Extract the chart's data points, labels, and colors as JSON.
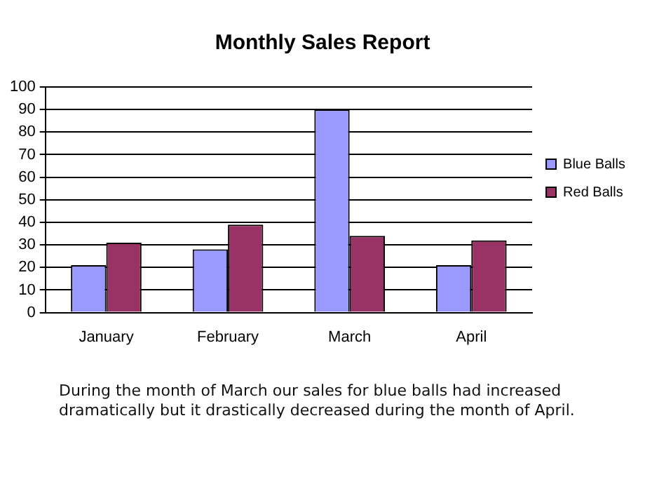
{
  "chart_data": {
    "type": "bar",
    "title": "Monthly Sales Report",
    "categories": [
      "January",
      "February",
      "March",
      "April"
    ],
    "series": [
      {
        "name": "Blue Balls",
        "color": "#9999ff",
        "values": [
          21,
          28,
          90,
          21
        ]
      },
      {
        "name": "Red Balls",
        "color": "#993366",
        "values": [
          31,
          39,
          34,
          32
        ]
      }
    ],
    "ylim": [
      0,
      100
    ],
    "yticks": [
      0,
      10,
      20,
      30,
      40,
      50,
      60,
      70,
      80,
      90,
      100
    ],
    "grid": "y",
    "legend": "right",
    "annotations": [
      "During the month of March our sales for blue balls had increased dramatically but it drastically decreased during the month of April."
    ]
  }
}
